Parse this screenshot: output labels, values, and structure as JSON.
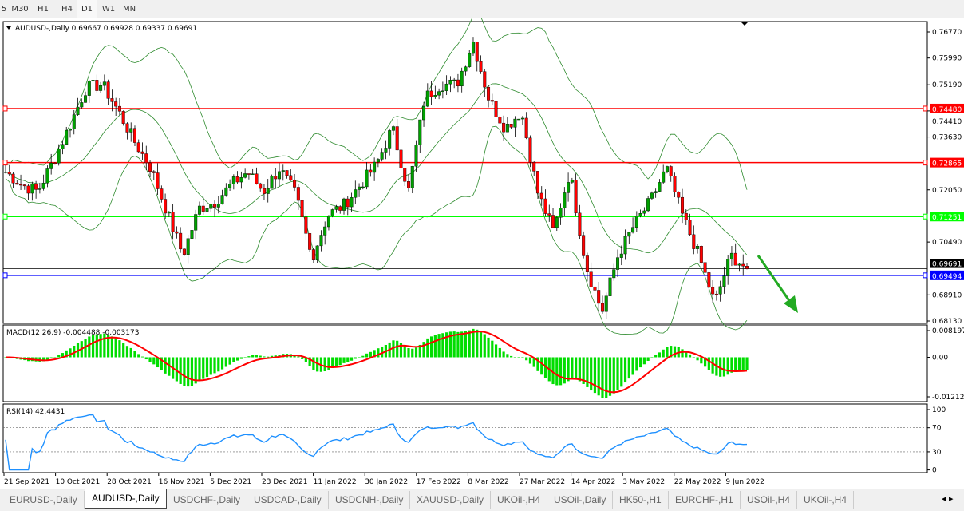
{
  "timeframes": [
    "5",
    "M30",
    "H1",
    "H4",
    "D1",
    "W1",
    "MN"
  ],
  "selected_timeframe": "D1",
  "header": {
    "symbol": "AUDUSD-,Daily",
    "ohlc": "0.69667 0.69928 0.69337 0.69691"
  },
  "price_axis": {
    "ticks": [
      "0.76770",
      "0.75990",
      "0.75190",
      "0.74410",
      "0.73630",
      "0.72050",
      "0.70490",
      "0.68910",
      "0.68130"
    ],
    "max": 0.7677,
    "min": 0.6813
  },
  "levels": [
    {
      "price": 0.7448,
      "label": "0.74480",
      "color": "#ff0000"
    },
    {
      "price": 0.72865,
      "label": "0.72865",
      "color": "#ff0000"
    },
    {
      "price": 0.71251,
      "label": "0.71251",
      "color": "#00ff00"
    },
    {
      "price": 0.69494,
      "label": "0.69494",
      "color": "#0000ff"
    }
  ],
  "current_price": {
    "price": 0.69691,
    "label": "0.69691"
  },
  "chart_data": {
    "type": "candlestick",
    "approx_closes": [
      0.7259,
      0.722,
      0.72,
      0.7295,
      0.74,
      0.751,
      0.752,
      0.744,
      0.735,
      0.7271,
      0.714,
      0.701,
      0.715,
      0.717,
      0.722,
      0.7259,
      0.72,
      0.727,
      0.719,
      0.7,
      0.713,
      0.716,
      0.722,
      0.728,
      0.739,
      0.72,
      0.748,
      0.752,
      0.752,
      0.765,
      0.7474,
      0.739,
      0.744,
      0.72,
      0.708,
      0.726,
      0.698,
      0.684,
      0.7009,
      0.71,
      0.717,
      0.727,
      0.7128,
      0.701,
      0.6866,
      0.7009,
      0.6969
    ],
    "date_labels": [
      "21 Sep 2021",
      "10 Oct 2021",
      "28 Oct 2021",
      "16 Nov 2021",
      "5 Dec 2021",
      "23 Dec 2021",
      "11 Jan 2022",
      "30 Jan 2022",
      "17 Feb 2022",
      "8 Mar 2022",
      "27 Mar 2022",
      "14 Apr 2022",
      "3 May 2022",
      "22 May 2022",
      "9 Jun 2022"
    ],
    "bull_color": "#00a000",
    "bear_color": "#ff0000",
    "bands_color": "#2e8b2e"
  },
  "macd": {
    "label": "MACD(12,26,9) -0.004488 -0.003173",
    "ticks": [
      "0.008197",
      "0.00",
      "-0.012121"
    ],
    "max": 0.008197,
    "min": -0.012121,
    "hist_color": "#00dd00",
    "signal_color": "#ff0000"
  },
  "rsi": {
    "label": "RSI(14) 42.4431",
    "ticks": [
      "100",
      "70",
      "30",
      "0"
    ],
    "line_color": "#1e90ff"
  },
  "arrow": {
    "direction": "down",
    "color": "#22aa22"
  },
  "tabs": [
    "EURUSD-,Daily",
    "AUDUSD-,Daily",
    "USDCHF-,Daily",
    "USDCAD-,Daily",
    "USDCNH-,Daily",
    "XAUUSD-,Daily",
    "UKOil-,H4",
    "USOil-,Daily",
    "HK50-,H1",
    "EURCHF-,H1",
    "USOil-,H4",
    "UKOil-,H4"
  ],
  "active_tab": "AUDUSD-,Daily"
}
